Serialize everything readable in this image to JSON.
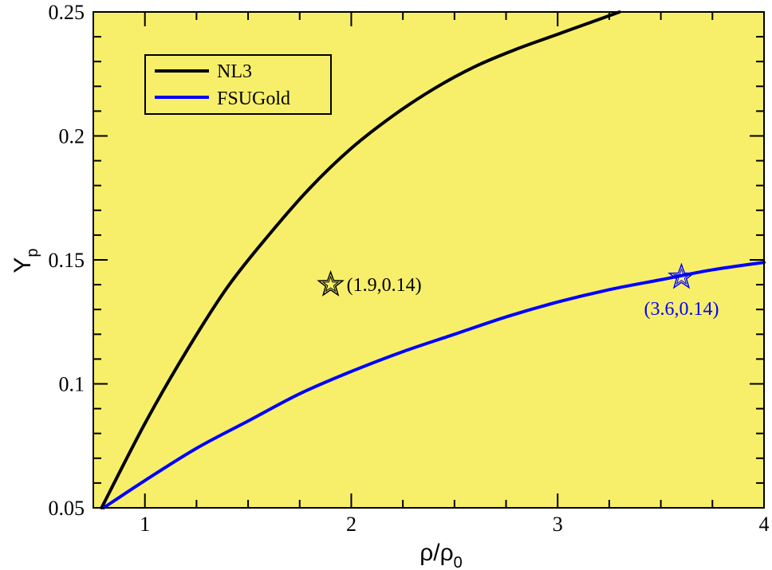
{
  "chart_data": {
    "type": "line",
    "title": "",
    "xlabel": "ρ/ρ",
    "xlabel_sub": "0",
    "ylabel": "Y",
    "ylabel_sub": "p",
    "xlim": [
      0.75,
      4
    ],
    "ylim": [
      0.05,
      0.25
    ],
    "x_ticks": [
      1,
      2,
      3,
      4
    ],
    "x_tick_labels": [
      "1",
      "2",
      "3",
      "4"
    ],
    "y_ticks": [
      0.05,
      0.1,
      0.15,
      0.2,
      0.25
    ],
    "y_tick_labels": [
      "0.05",
      "0.1",
      "0.15",
      "0.2",
      "0.25"
    ],
    "grid": false,
    "background_color": "#f7ef6a",
    "legend_position": "top-left",
    "series": [
      {
        "name": "NL3",
        "color": "#000000",
        "x": [
          0.79,
          1.0,
          1.2,
          1.4,
          1.6,
          1.8,
          2.0,
          2.2,
          2.4,
          2.6,
          2.8,
          3.0,
          3.2,
          3.3
        ],
        "y": [
          0.05,
          0.084,
          0.113,
          0.139,
          0.16,
          0.179,
          0.195,
          0.208,
          0.219,
          0.228,
          0.235,
          0.241,
          0.247,
          0.25
        ]
      },
      {
        "name": "FSUGold",
        "color": "#0000ff",
        "x": [
          0.8,
          1.0,
          1.25,
          1.5,
          1.75,
          2.0,
          2.25,
          2.5,
          2.75,
          3.0,
          3.25,
          3.5,
          3.75,
          4.0
        ],
        "y": [
          0.05,
          0.061,
          0.074,
          0.085,
          0.096,
          0.105,
          0.113,
          0.12,
          0.127,
          0.133,
          0.138,
          0.142,
          0.146,
          0.149
        ]
      }
    ],
    "annotations": [
      {
        "x": 1.9,
        "y": 0.14,
        "text": "(1.9,0.14)",
        "color": "#000000",
        "marker": "star"
      },
      {
        "x": 3.6,
        "y": 0.143,
        "text": "(3.6,0.14)",
        "color": "#0000ff",
        "marker": "star"
      }
    ]
  }
}
